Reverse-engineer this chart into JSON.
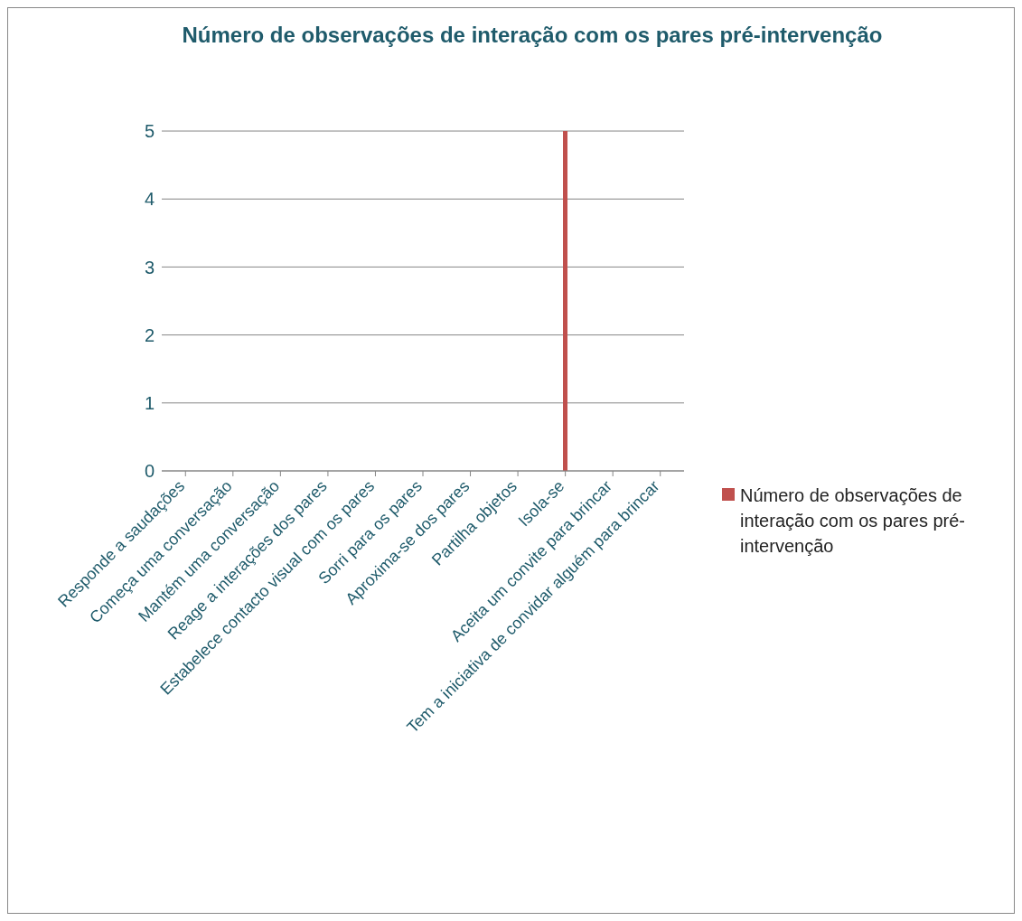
{
  "chart_data": {
    "type": "bar",
    "title": "Número de observações de interação com os pares pré-intervenção",
    "categories": [
      "Responde a saudações",
      "Começa uma conversação",
      "Mantém uma conversação",
      "Reage a interações dos pares",
      "Estabelece contacto visual com os pares",
      "Sorri para os pares",
      "Aproxima-se dos pares",
      "Partilha objetos",
      "Isola-se",
      "Aceita um convite para brincar",
      "Tem a iniciativa de convidar alguém para brincar"
    ],
    "series": [
      {
        "name": "Número de observações de interação com os pares pré-intervenção",
        "color": "#c0504d",
        "values": [
          0,
          0,
          0,
          0,
          0,
          0,
          0,
          0,
          5,
          0,
          0
        ]
      }
    ],
    "ylim": [
      0,
      5
    ],
    "yticks": [
      0,
      1,
      2,
      3,
      4,
      5
    ],
    "grid": "y",
    "legend": "right"
  }
}
